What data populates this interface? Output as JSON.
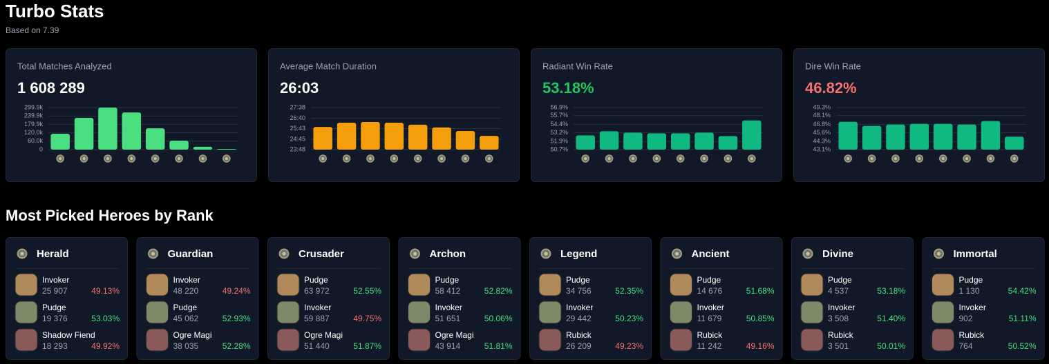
{
  "header": {
    "title": "Turbo Stats",
    "subtitle": "Based on 7.39"
  },
  "chart_data": [
    {
      "type": "bar",
      "title": "Total Matches Analyzed",
      "headline": "1 608 289",
      "headline_color": "#ffffff",
      "color": "#4ade80",
      "values": [
        113000,
        226000,
        299900,
        265000,
        152000,
        64000,
        20000,
        5000
      ],
      "ylim": [
        0,
        299900
      ],
      "yticks": [
        0,
        {
          "value": 60000,
          "label": "60.0k"
        },
        {
          "value": 120000,
          "label": "120.0k"
        },
        {
          "value": 179900,
          "label": "179.9k"
        },
        {
          "value": 239900,
          "label": "239.9k"
        },
        {
          "value": 299900,
          "label": "299.9k"
        }
      ],
      "grid": true
    },
    {
      "type": "bar",
      "title": "Average Match Duration",
      "headline": "26:03",
      "headline_color": "#ffffff",
      "color": "#f59e0b",
      "values": [
        1552,
        1575,
        1579,
        1575,
        1564,
        1549,
        1530,
        1503
      ],
      "ylim": [
        1428,
        1658
      ],
      "yticks": [
        {
          "value": 1428,
          "label": "23:48"
        },
        {
          "value": 1485,
          "label": "24:45"
        },
        {
          "value": 1543,
          "label": "25:43"
        },
        {
          "value": 1600,
          "label": "26:40"
        },
        {
          "value": 1658,
          "label": "27:38"
        }
      ],
      "grid": true
    },
    {
      "type": "bar",
      "title": "Radiant Win Rate",
      "headline": "53.18%",
      "headline_color": "#22c55e",
      "color": "#10b981",
      "values": [
        52.8,
        53.4,
        53.2,
        53.1,
        53.1,
        53.2,
        52.7,
        55.0
      ],
      "ylim": [
        50.7,
        56.9
      ],
      "yticks": [
        {
          "value": 50.7,
          "label": "50.7%"
        },
        {
          "value": 51.9,
          "label": "51.9%"
        },
        {
          "value": 53.2,
          "label": "53.2%"
        },
        {
          "value": 54.4,
          "label": "54.4%"
        },
        {
          "value": 55.7,
          "label": "55.7%"
        },
        {
          "value": 56.9,
          "label": "56.9%"
        }
      ],
      "grid": true
    },
    {
      "type": "bar",
      "title": "Dire Win Rate",
      "headline": "46.82%",
      "headline_color": "#f87171",
      "color": "#10b981",
      "values": [
        47.2,
        46.6,
        46.8,
        46.9,
        46.9,
        46.8,
        47.3,
        45.0
      ],
      "ylim": [
        43.1,
        49.3
      ],
      "yticks": [
        {
          "value": 43.1,
          "label": "43.1%"
        },
        {
          "value": 44.3,
          "label": "44.3%"
        },
        {
          "value": 45.6,
          "label": "45.6%"
        },
        {
          "value": 46.8,
          "label": "46.8%"
        },
        {
          "value": 48.1,
          "label": "48.1%"
        },
        {
          "value": 49.3,
          "label": "49.3%"
        }
      ],
      "grid": true
    }
  ],
  "heroes_section": {
    "title": "Most Picked Heroes by Rank",
    "ranks": [
      {
        "name": "Herald",
        "heroes": [
          {
            "name": "Invoker",
            "count": "25 907",
            "win_rate": "49.13%"
          },
          {
            "name": "Pudge",
            "count": "19 376",
            "win_rate": "53.03%"
          },
          {
            "name": "Shadow Fiend",
            "count": "18 293",
            "win_rate": "49.92%"
          }
        ]
      },
      {
        "name": "Guardian",
        "heroes": [
          {
            "name": "Invoker",
            "count": "48 220",
            "win_rate": "49.24%"
          },
          {
            "name": "Pudge",
            "count": "45 062",
            "win_rate": "52.93%"
          },
          {
            "name": "Ogre Magi",
            "count": "38 035",
            "win_rate": "52.28%"
          }
        ]
      },
      {
        "name": "Crusader",
        "heroes": [
          {
            "name": "Pudge",
            "count": "63 972",
            "win_rate": "52.55%"
          },
          {
            "name": "Invoker",
            "count": "59 887",
            "win_rate": "49.75%"
          },
          {
            "name": "Ogre Magi",
            "count": "51 440",
            "win_rate": "51.87%"
          }
        ]
      },
      {
        "name": "Archon",
        "heroes": [
          {
            "name": "Pudge",
            "count": "58 412",
            "win_rate": "52.82%"
          },
          {
            "name": "Invoker",
            "count": "51 651",
            "win_rate": "50.06%"
          },
          {
            "name": "Ogre Magi",
            "count": "43 914",
            "win_rate": "51.81%"
          }
        ]
      },
      {
        "name": "Legend",
        "heroes": [
          {
            "name": "Pudge",
            "count": "34 756",
            "win_rate": "52.35%"
          },
          {
            "name": "Invoker",
            "count": "29 442",
            "win_rate": "50.23%"
          },
          {
            "name": "Rubick",
            "count": "26 209",
            "win_rate": "49.23%"
          }
        ]
      },
      {
        "name": "Ancient",
        "heroes": [
          {
            "name": "Pudge",
            "count": "14 676",
            "win_rate": "51.68%"
          },
          {
            "name": "Invoker",
            "count": "11 679",
            "win_rate": "50.85%"
          },
          {
            "name": "Rubick",
            "count": "11 242",
            "win_rate": "49.16%"
          }
        ]
      },
      {
        "name": "Divine",
        "heroes": [
          {
            "name": "Pudge",
            "count": "4 537",
            "win_rate": "53.18%"
          },
          {
            "name": "Invoker",
            "count": "3 508",
            "win_rate": "51.40%"
          },
          {
            "name": "Rubick",
            "count": "3 501",
            "win_rate": "50.01%"
          }
        ]
      },
      {
        "name": "Immortal",
        "heroes": [
          {
            "name": "Pudge",
            "count": "1 130",
            "win_rate": "54.42%"
          },
          {
            "name": "Invoker",
            "count": "902",
            "win_rate": "51.11%"
          },
          {
            "name": "Rubick",
            "count": "764",
            "win_rate": "50.52%"
          }
        ]
      }
    ]
  }
}
